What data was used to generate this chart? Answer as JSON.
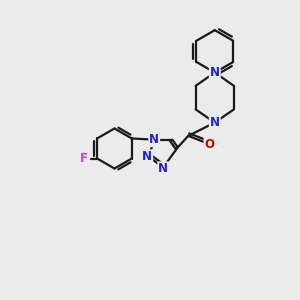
{
  "bg_color": "#ebebeb",
  "bond_color": "#1a1a1a",
  "N_color": "#2020cc",
  "O_color": "#cc0000",
  "F_color": "#cc44cc",
  "line_width": 1.6,
  "font_size_atom": 8.5,
  "xlim": [
    0,
    10
  ],
  "ylim": [
    0,
    10
  ]
}
